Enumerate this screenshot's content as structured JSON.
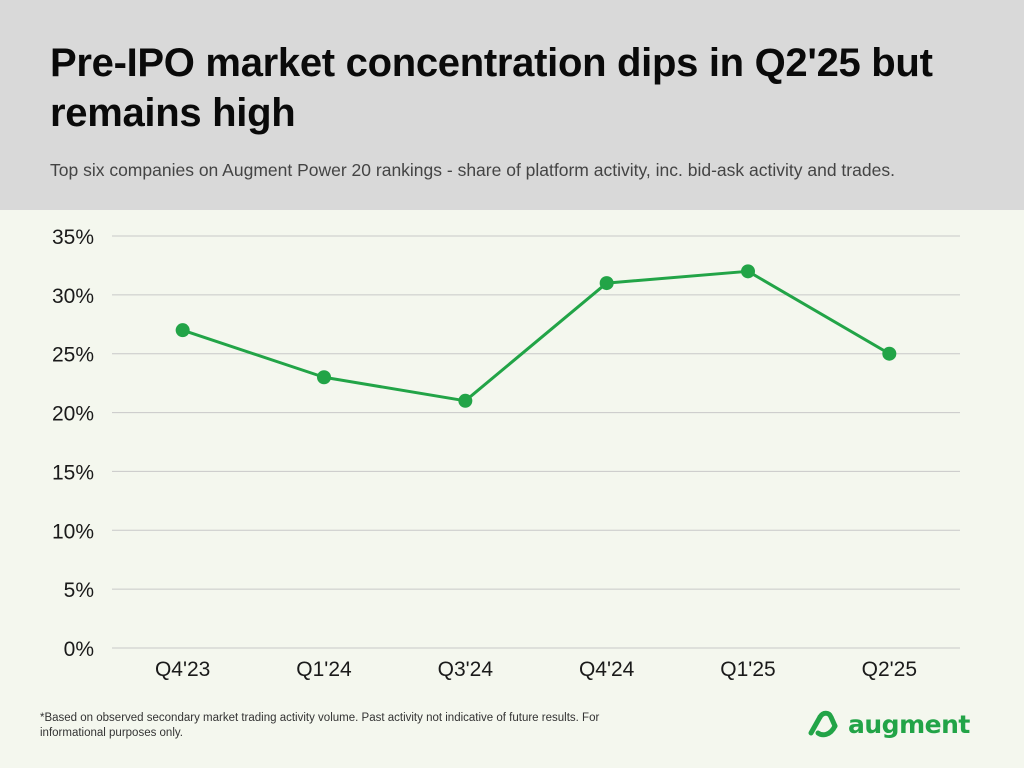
{
  "header": {
    "title": "Pre-IPO market concentration dips in Q2'25 but remains high",
    "subtitle": "Top six companies on Augment Power 20 rankings - share of platform activity, inc. bid-ask activity and trades."
  },
  "footer": {
    "footnote": "*Based on observed secondary market trading activity volume. Past activity not indicative of future results. For informational purposes only.",
    "brand": "augment"
  },
  "colors": {
    "series": "#22a447",
    "grid": "#c8c8c8",
    "header_bg": "#d9d9d9",
    "page_bg": "#f4f7ee",
    "brand": "#22a447"
  },
  "icons": {
    "logo": "augment-logo-icon"
  },
  "chart_data": {
    "type": "line",
    "categories": [
      "Q4'23",
      "Q1'24",
      "Q3'24",
      "Q4'24",
      "Q1'25",
      "Q2'25"
    ],
    "series": [
      {
        "values": [
          27,
          23,
          21,
          31,
          32,
          25
        ]
      }
    ],
    "ylim": [
      0,
      35
    ],
    "yticks": [
      0,
      5,
      10,
      15,
      20,
      25,
      30,
      35
    ],
    "ytick_labels": [
      "0%",
      "5%",
      "10%",
      "15%",
      "20%",
      "25%",
      "30%",
      "35%"
    ],
    "grid": true,
    "legend": "none",
    "markers": true
  }
}
